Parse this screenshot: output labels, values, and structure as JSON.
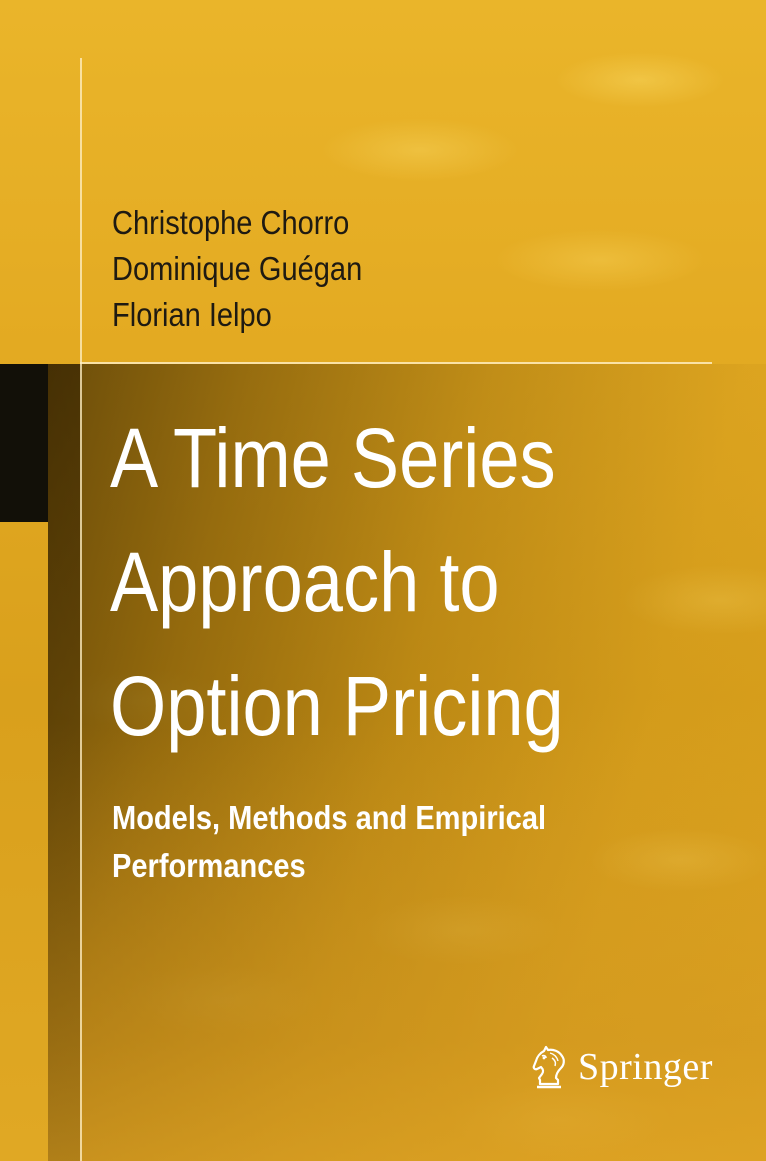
{
  "authors": [
    "Christophe Chorro",
    "Dominique Guégan",
    "Florian Ielpo"
  ],
  "title_lines": [
    "A Time Series",
    "Approach to",
    "Option Pricing"
  ],
  "subtitle_lines": [
    "Models, Methods and Empirical",
    "Performances"
  ],
  "publisher": {
    "name": "Springer",
    "icon": "chess-knight-icon"
  },
  "colors": {
    "background": "#e3aa22",
    "title_text": "#ffffff",
    "author_text": "#1e1a12",
    "black_tab": "#121008"
  }
}
